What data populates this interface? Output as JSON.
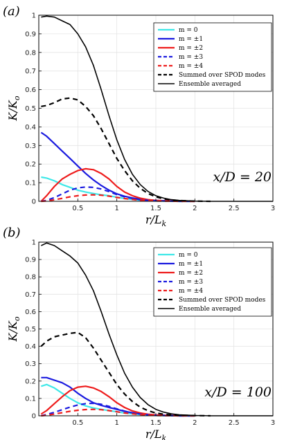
{
  "chart_data": [
    {
      "type": "line",
      "panel_label": "(a)",
      "annotation": "x/D = 20",
      "xlabel": "r/L_k",
      "ylabel": "K/K_o",
      "xlim": [
        0,
        3
      ],
      "ylim": [
        0,
        1
      ],
      "xticks": [
        "0.5",
        "1",
        "1.5",
        "2",
        "2.5",
        "3"
      ],
      "yticks": [
        "0",
        "0.1",
        "0.2",
        "0.3",
        "0.4",
        "0.5",
        "0.6",
        "0.7",
        "0.8",
        "0.9",
        "1"
      ],
      "grid": true,
      "legend_position": "top-right",
      "series": [
        {
          "name": "m = 0",
          "color": "#3ee8e8",
          "dash": "solid",
          "width": "thick",
          "x": [
            0.03,
            0.1,
            0.2,
            0.3,
            0.4,
            0.5,
            0.6,
            0.7,
            0.8,
            0.9,
            1.0,
            1.1,
            1.2,
            1.3,
            1.4,
            1.5,
            1.6,
            1.8,
            2.0
          ],
          "y": [
            0.13,
            0.125,
            0.11,
            0.09,
            0.075,
            0.06,
            0.05,
            0.042,
            0.035,
            0.03,
            0.022,
            0.015,
            0.01,
            0.006,
            0.004,
            0.002,
            0.001,
            0,
            0
          ]
        },
        {
          "name": "m = ±1",
          "color": "#1a1adf",
          "dash": "solid",
          "width": "thick",
          "x": [
            0.03,
            0.1,
            0.2,
            0.3,
            0.4,
            0.5,
            0.6,
            0.7,
            0.8,
            0.9,
            1.0,
            1.1,
            1.2,
            1.3,
            1.4,
            1.5,
            1.6,
            1.8,
            2.0
          ],
          "y": [
            0.37,
            0.35,
            0.31,
            0.27,
            0.23,
            0.19,
            0.15,
            0.115,
            0.085,
            0.06,
            0.04,
            0.027,
            0.018,
            0.012,
            0.008,
            0.005,
            0.003,
            0.001,
            0
          ]
        },
        {
          "name": "m = ±2",
          "color": "#ee1c1c",
          "dash": "solid",
          "width": "thick",
          "x": [
            0.03,
            0.1,
            0.2,
            0.3,
            0.4,
            0.5,
            0.6,
            0.7,
            0.8,
            0.9,
            1.0,
            1.1,
            1.2,
            1.3,
            1.4,
            1.5,
            1.6,
            1.8,
            2.0
          ],
          "y": [
            0.0,
            0.03,
            0.08,
            0.12,
            0.145,
            0.165,
            0.175,
            0.17,
            0.15,
            0.12,
            0.08,
            0.05,
            0.03,
            0.017,
            0.009,
            0.005,
            0.003,
            0.001,
            0
          ]
        },
        {
          "name": "m = ±3",
          "color": "#1a1adf",
          "dash": "dashed",
          "width": "thick",
          "x": [
            0.03,
            0.1,
            0.2,
            0.3,
            0.4,
            0.5,
            0.6,
            0.7,
            0.8,
            0.9,
            1.0,
            1.1,
            1.2,
            1.3,
            1.4,
            1.5,
            1.6,
            1.8,
            2.0
          ],
          "y": [
            0.0,
            0.005,
            0.02,
            0.04,
            0.06,
            0.072,
            0.077,
            0.075,
            0.066,
            0.052,
            0.036,
            0.024,
            0.015,
            0.009,
            0.005,
            0.003,
            0.002,
            0,
            0
          ]
        },
        {
          "name": "m = ±4",
          "color": "#ee1c1c",
          "dash": "dashed",
          "width": "thick",
          "x": [
            0.03,
            0.1,
            0.2,
            0.3,
            0.4,
            0.5,
            0.6,
            0.7,
            0.8,
            0.9,
            1.0,
            1.1,
            1.2,
            1.3,
            1.4,
            1.5,
            1.6,
            1.8,
            2.0
          ],
          "y": [
            0.0,
            0.002,
            0.008,
            0.016,
            0.024,
            0.03,
            0.034,
            0.035,
            0.033,
            0.028,
            0.021,
            0.015,
            0.01,
            0.006,
            0.004,
            0.002,
            0.001,
            0,
            0
          ]
        },
        {
          "name": "Summed over SPOD modes",
          "color": "#000000",
          "dash": "dashed",
          "width": "thick",
          "x": [
            0.03,
            0.1,
            0.2,
            0.3,
            0.4,
            0.5,
            0.6,
            0.7,
            0.8,
            0.9,
            1.0,
            1.1,
            1.2,
            1.3,
            1.4,
            1.5,
            1.6,
            1.7,
            1.8,
            2.0,
            2.2
          ],
          "y": [
            0.51,
            0.515,
            0.53,
            0.55,
            0.555,
            0.545,
            0.51,
            0.46,
            0.39,
            0.31,
            0.23,
            0.165,
            0.11,
            0.07,
            0.042,
            0.024,
            0.013,
            0.007,
            0.004,
            0.001,
            0
          ]
        },
        {
          "name": "Ensemble averaged",
          "color": "#000000",
          "dash": "solid",
          "width": "thin",
          "x": [
            0.03,
            0.1,
            0.2,
            0.3,
            0.4,
            0.5,
            0.6,
            0.7,
            0.8,
            0.9,
            1.0,
            1.1,
            1.2,
            1.3,
            1.4,
            1.5,
            1.6,
            1.7,
            1.8,
            2.0,
            2.2,
            2.5,
            3.0
          ],
          "y": [
            0.99,
            0.995,
            0.99,
            0.97,
            0.95,
            0.9,
            0.83,
            0.73,
            0.6,
            0.46,
            0.33,
            0.225,
            0.145,
            0.09,
            0.053,
            0.03,
            0.017,
            0.009,
            0.005,
            0.001,
            0,
            0,
            0
          ]
        }
      ]
    },
    {
      "type": "line",
      "panel_label": "(b)",
      "annotation": "x/D = 100",
      "xlabel": "r/L_k",
      "ylabel": "K/K_o",
      "xlim": [
        0,
        3
      ],
      "ylim": [
        0,
        1
      ],
      "xticks": [
        "0.5",
        "1",
        "1.5",
        "2",
        "2.5",
        "3"
      ],
      "yticks": [
        "0",
        "0.1",
        "0.2",
        "0.3",
        "0.4",
        "0.5",
        "0.6",
        "0.7",
        "0.8",
        "0.9",
        "1"
      ],
      "grid": true,
      "legend_position": "top-right",
      "series": [
        {
          "name": "m = 0",
          "color": "#3ee8e8",
          "dash": "solid",
          "width": "thick",
          "x": [
            0.03,
            0.1,
            0.2,
            0.3,
            0.4,
            0.5,
            0.6,
            0.7,
            0.8,
            0.9,
            1.0,
            1.1,
            1.2,
            1.3,
            1.4,
            1.5,
            1.6,
            1.8,
            2.0
          ],
          "y": [
            0.17,
            0.18,
            0.16,
            0.13,
            0.1,
            0.075,
            0.057,
            0.045,
            0.037,
            0.03,
            0.023,
            0.016,
            0.011,
            0.007,
            0.004,
            0.002,
            0.001,
            0,
            0
          ]
        },
        {
          "name": "m = ±1",
          "color": "#1a1adf",
          "dash": "solid",
          "width": "thick",
          "x": [
            0.03,
            0.1,
            0.2,
            0.3,
            0.4,
            0.5,
            0.6,
            0.7,
            0.8,
            0.9,
            1.0,
            1.1,
            1.2,
            1.3,
            1.4,
            1.5,
            1.6,
            1.8,
            2.0
          ],
          "y": [
            0.22,
            0.22,
            0.205,
            0.19,
            0.165,
            0.13,
            0.1,
            0.075,
            0.06,
            0.048,
            0.037,
            0.026,
            0.017,
            0.011,
            0.007,
            0.004,
            0.002,
            0,
            0
          ]
        },
        {
          "name": "m = ±2",
          "color": "#ee1c1c",
          "dash": "solid",
          "width": "thick",
          "x": [
            0.03,
            0.1,
            0.2,
            0.3,
            0.4,
            0.5,
            0.6,
            0.7,
            0.8,
            0.9,
            1.0,
            1.1,
            1.2,
            1.3,
            1.4,
            1.5,
            1.6,
            1.8,
            2.0
          ],
          "y": [
            0.01,
            0.03,
            0.07,
            0.11,
            0.145,
            0.165,
            0.17,
            0.16,
            0.14,
            0.11,
            0.075,
            0.048,
            0.028,
            0.016,
            0.009,
            0.005,
            0.003,
            0.001,
            0
          ]
        },
        {
          "name": "m = ±3",
          "color": "#1a1adf",
          "dash": "dashed",
          "width": "thick",
          "x": [
            0.03,
            0.1,
            0.2,
            0.3,
            0.4,
            0.5,
            0.6,
            0.7,
            0.8,
            0.9,
            1.0,
            1.1,
            1.2,
            1.3,
            1.4,
            1.5,
            1.6,
            1.8,
            2.0
          ],
          "y": [
            0.0,
            0.008,
            0.02,
            0.035,
            0.05,
            0.062,
            0.07,
            0.072,
            0.066,
            0.054,
            0.04,
            0.027,
            0.017,
            0.01,
            0.006,
            0.003,
            0.002,
            0,
            0
          ]
        },
        {
          "name": "m = ±4",
          "color": "#ee1c1c",
          "dash": "dashed",
          "width": "thick",
          "x": [
            0.03,
            0.1,
            0.2,
            0.3,
            0.4,
            0.5,
            0.6,
            0.7,
            0.8,
            0.9,
            1.0,
            1.1,
            1.2,
            1.3,
            1.4,
            1.5,
            1.6,
            1.8,
            2.0
          ],
          "y": [
            0.0,
            0.003,
            0.01,
            0.018,
            0.026,
            0.032,
            0.036,
            0.037,
            0.035,
            0.03,
            0.023,
            0.016,
            0.011,
            0.007,
            0.004,
            0.002,
            0.001,
            0,
            0
          ]
        },
        {
          "name": "Summed over SPOD modes",
          "color": "#000000",
          "dash": "dashed",
          "width": "thick",
          "x": [
            0.03,
            0.1,
            0.2,
            0.3,
            0.4,
            0.5,
            0.6,
            0.7,
            0.8,
            0.9,
            1.0,
            1.1,
            1.2,
            1.3,
            1.4,
            1.5,
            1.6,
            1.7,
            1.8,
            2.0,
            2.2
          ],
          "y": [
            0.4,
            0.43,
            0.455,
            0.465,
            0.475,
            0.48,
            0.45,
            0.39,
            0.32,
            0.25,
            0.18,
            0.125,
            0.082,
            0.05,
            0.029,
            0.016,
            0.009,
            0.005,
            0.003,
            0.001,
            0
          ]
        },
        {
          "name": "Ensemble averaged",
          "color": "#000000",
          "dash": "solid",
          "width": "thin",
          "x": [
            0.03,
            0.1,
            0.2,
            0.3,
            0.4,
            0.5,
            0.6,
            0.7,
            0.8,
            0.9,
            1.0,
            1.1,
            1.2,
            1.3,
            1.4,
            1.5,
            1.6,
            1.7,
            1.8,
            2.0,
            2.2,
            2.5,
            3.0
          ],
          "y": [
            0.98,
            0.995,
            0.98,
            0.95,
            0.92,
            0.88,
            0.81,
            0.72,
            0.6,
            0.47,
            0.35,
            0.245,
            0.165,
            0.105,
            0.064,
            0.037,
            0.021,
            0.011,
            0.006,
            0.002,
            0,
            0,
            0
          ]
        }
      ]
    }
  ]
}
